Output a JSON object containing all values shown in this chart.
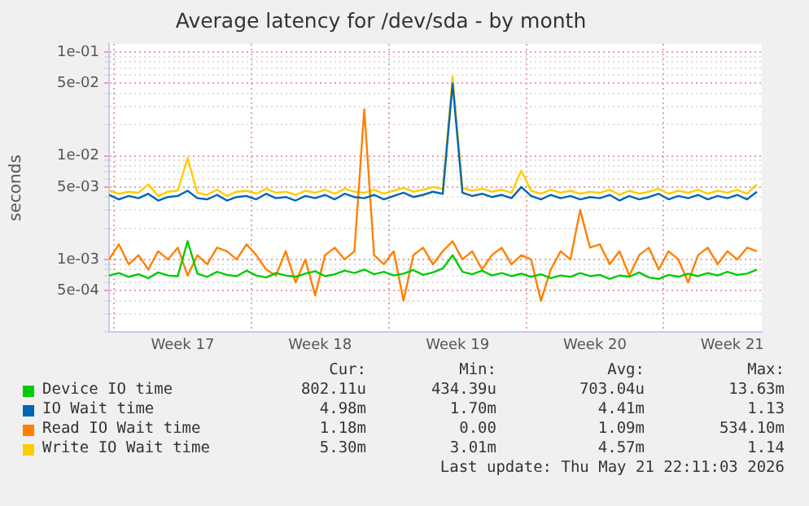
{
  "chart_data": {
    "type": "line",
    "title": "Average latency for /dev/sda - by month",
    "ylabel": "seconds",
    "log": "y",
    "grid": true,
    "legend": "bottom",
    "marker": "none",
    "line_style": "solid",
    "x": [
      "2026-04-19T18:00",
      "2026-04-20T06:00",
      "2026-04-20T18:00",
      "2026-04-21T06:00",
      "2026-04-21T18:00",
      "2026-04-22T06:00",
      "2026-04-22T18:00",
      "2026-04-23T06:00",
      "2026-04-23T18:00",
      "2026-04-24T06:00",
      "2026-04-24T18:00",
      "2026-04-25T06:00",
      "2026-04-25T18:00",
      "2026-04-26T06:00",
      "2026-04-26T18:00",
      "2026-04-27T06:00",
      "2026-04-27T18:00",
      "2026-04-28T06:00",
      "2026-04-28T18:00",
      "2026-04-29T06:00",
      "2026-04-29T18:00",
      "2026-04-30T06:00",
      "2026-04-30T18:00",
      "2026-05-01T06:00",
      "2026-05-01T18:00",
      "2026-05-02T06:00",
      "2026-05-02T18:00",
      "2026-05-03T06:00",
      "2026-05-03T18:00",
      "2026-05-04T06:00",
      "2026-05-04T18:00",
      "2026-05-05T06:00",
      "2026-05-05T18:00",
      "2026-05-06T06:00",
      "2026-05-06T18:00",
      "2026-05-07T06:00",
      "2026-05-07T18:00",
      "2026-05-08T06:00",
      "2026-05-08T18:00",
      "2026-05-09T06:00",
      "2026-05-09T18:00",
      "2026-05-10T06:00",
      "2026-05-10T18:00",
      "2026-05-11T06:00",
      "2026-05-11T18:00",
      "2026-05-12T06:00",
      "2026-05-12T18:00",
      "2026-05-13T06:00",
      "2026-05-13T18:00",
      "2026-05-14T06:00",
      "2026-05-14T18:00",
      "2026-05-15T06:00",
      "2026-05-15T18:00",
      "2026-05-16T06:00",
      "2026-05-16T18:00",
      "2026-05-17T06:00",
      "2026-05-17T18:00",
      "2026-05-18T06:00",
      "2026-05-18T18:00",
      "2026-05-19T06:00",
      "2026-05-19T18:00",
      "2026-05-20T06:00",
      "2026-05-20T18:00",
      "2026-05-21T06:00",
      "2026-05-21T18:00",
      "2026-05-22T06:00",
      "2026-05-22T18:00"
    ],
    "xlim": [
      "2026-04-19T18:00",
      "2026-05-23T00:00"
    ],
    "xticks": [
      {
        "value": "2026-04-20T00:00",
        "label": null
      },
      {
        "value": "2026-04-23T12:00",
        "label": "Week 17"
      },
      {
        "value": "2026-04-27T00:00",
        "label": null
      },
      {
        "value": "2026-04-30T12:00",
        "label": "Week 18"
      },
      {
        "value": "2026-05-04T00:00",
        "label": null
      },
      {
        "value": "2026-05-07T12:00",
        "label": "Week 19"
      },
      {
        "value": "2026-05-11T00:00",
        "label": null
      },
      {
        "value": "2026-05-14T12:00",
        "label": "Week 20"
      },
      {
        "value": "2026-05-18T00:00",
        "label": null
      },
      {
        "value": "2026-05-21T12:00",
        "label": "Week 21"
      }
    ],
    "ylim": [
      0.0002,
      0.12
    ],
    "yticks": [
      {
        "value": 0.0002,
        "label": null
      },
      {
        "value": 0.0003,
        "label": null
      },
      {
        "value": 0.0004,
        "label": null
      },
      {
        "value": 0.0005,
        "label": "5e-04"
      },
      {
        "value": 0.0006,
        "label": null
      },
      {
        "value": 0.0007,
        "label": null
      },
      {
        "value": 0.0008,
        "label": null
      },
      {
        "value": 0.0009,
        "label": null
      },
      {
        "value": 0.001,
        "label": "1e-03"
      },
      {
        "value": 0.002,
        "label": null
      },
      {
        "value": 0.003,
        "label": null
      },
      {
        "value": 0.004,
        "label": null
      },
      {
        "value": 0.005,
        "label": "5e-03"
      },
      {
        "value": 0.006,
        "label": null
      },
      {
        "value": 0.007,
        "label": null
      },
      {
        "value": 0.008,
        "label": null
      },
      {
        "value": 0.009,
        "label": null
      },
      {
        "value": 0.01,
        "label": "1e-02"
      },
      {
        "value": 0.02,
        "label": null
      },
      {
        "value": 0.03,
        "label": null
      },
      {
        "value": 0.04,
        "label": null
      },
      {
        "value": 0.05,
        "label": "5e-02"
      },
      {
        "value": 0.06,
        "label": null
      },
      {
        "value": 0.07,
        "label": null
      },
      {
        "value": 0.08,
        "label": null
      },
      {
        "value": 0.09,
        "label": null
      },
      {
        "value": 0.1,
        "label": "1e-01"
      }
    ],
    "series": [
      {
        "name": "Device IO time",
        "color": "#00cc00",
        "values": [
          0.0007,
          0.00074,
          0.00068,
          0.00072,
          0.00066,
          0.00075,
          0.0007,
          0.00069,
          0.0015,
          0.00073,
          0.00068,
          0.00076,
          0.00071,
          0.00069,
          0.00078,
          0.0007,
          0.00067,
          0.00074,
          0.0007,
          0.00068,
          0.00073,
          0.00077,
          0.00069,
          0.00072,
          0.00078,
          0.00074,
          0.0008,
          0.00072,
          0.00076,
          0.0007,
          0.00073,
          0.00079,
          0.00071,
          0.00075,
          0.00082,
          0.0011,
          0.00076,
          0.00072,
          0.00078,
          0.0007,
          0.00074,
          0.00069,
          0.00073,
          0.00068,
          0.00072,
          0.00066,
          0.0007,
          0.00068,
          0.00074,
          0.00069,
          0.00071,
          0.00065,
          0.0007,
          0.00068,
          0.00075,
          0.00067,
          0.00065,
          0.00071,
          0.00068,
          0.00073,
          0.00069,
          0.00074,
          0.0007,
          0.00076,
          0.00071,
          0.00073,
          0.0008
        ]
      },
      {
        "name": "IO Wait time",
        "color": "#0066b3",
        "values": [
          0.0042,
          0.0038,
          0.0041,
          0.0039,
          0.0043,
          0.0037,
          0.004,
          0.0041,
          0.0046,
          0.0039,
          0.0038,
          0.0042,
          0.0037,
          0.004,
          0.0041,
          0.0038,
          0.0043,
          0.0039,
          0.004,
          0.0037,
          0.0041,
          0.0039,
          0.0042,
          0.0038,
          0.0043,
          0.004,
          0.0039,
          0.0042,
          0.0038,
          0.0041,
          0.0044,
          0.004,
          0.0042,
          0.0045,
          0.0043,
          0.05,
          0.0044,
          0.0041,
          0.0043,
          0.004,
          0.0042,
          0.0039,
          0.005,
          0.0041,
          0.0038,
          0.0042,
          0.0039,
          0.0041,
          0.0038,
          0.004,
          0.0039,
          0.0042,
          0.0037,
          0.0041,
          0.0038,
          0.004,
          0.0043,
          0.0038,
          0.0041,
          0.0039,
          0.0042,
          0.0038,
          0.0041,
          0.0039,
          0.0042,
          0.0038,
          0.0045
        ]
      },
      {
        "name": "Read IO Wait time",
        "color": "#ff8000",
        "values": [
          0.001,
          0.0014,
          0.0009,
          0.0011,
          0.0008,
          0.0012,
          0.001,
          0.0013,
          0.0007,
          0.0011,
          0.0009,
          0.0013,
          0.0012,
          0.001,
          0.0014,
          0.0011,
          0.0008,
          0.0007,
          0.0012,
          0.0006,
          0.001,
          0.00045,
          0.0011,
          0.0013,
          0.001,
          0.0012,
          0.028,
          0.0011,
          0.0009,
          0.0012,
          0.0004,
          0.0011,
          0.0013,
          0.0009,
          0.0012,
          0.0015,
          0.001,
          0.0012,
          0.0008,
          0.0011,
          0.0013,
          0.0009,
          0.0011,
          0.001,
          0.0004,
          0.0008,
          0.0012,
          0.001,
          0.003,
          0.0013,
          0.0014,
          0.0009,
          0.0012,
          0.0007,
          0.0011,
          0.0013,
          0.0008,
          0.0012,
          0.001,
          0.0006,
          0.0011,
          0.0013,
          0.0009,
          0.0012,
          0.001,
          0.0013,
          0.0012
        ]
      },
      {
        "name": "Write IO Wait time",
        "color": "#ffcc00",
        "values": [
          0.0046,
          0.0043,
          0.0045,
          0.0044,
          0.0053,
          0.0041,
          0.0045,
          0.0046,
          0.0095,
          0.0044,
          0.0042,
          0.0047,
          0.0041,
          0.0045,
          0.0046,
          0.0043,
          0.0048,
          0.0044,
          0.0045,
          0.0042,
          0.0046,
          0.0044,
          0.0047,
          0.0043,
          0.0048,
          0.0045,
          0.0044,
          0.0047,
          0.0043,
          0.0046,
          0.0049,
          0.0045,
          0.0047,
          0.005,
          0.0048,
          0.058,
          0.0049,
          0.0046,
          0.0048,
          0.0045,
          0.0047,
          0.0044,
          0.0072,
          0.0046,
          0.0043,
          0.0047,
          0.0044,
          0.0046,
          0.0043,
          0.0045,
          0.0044,
          0.0047,
          0.0042,
          0.0046,
          0.0043,
          0.0045,
          0.0048,
          0.0043,
          0.0046,
          0.0044,
          0.0047,
          0.0043,
          0.0046,
          0.0044,
          0.0047,
          0.0043,
          0.0053
        ]
      }
    ],
    "annotations": [
      "Cur:",
      "Min:",
      "Avg:",
      "Max:",
      "802.11u",
      "434.39u",
      "703.04u",
      "13.63m",
      "4.98m",
      "1.70m",
      "4.41m",
      "1.13",
      "1.18m",
      "0.00",
      "1.09m",
      "534.10m",
      "5.30m",
      "3.01m",
      "4.57m",
      "1.14",
      "Last update: Thu May 21 22:11:03 2026"
    ]
  }
}
